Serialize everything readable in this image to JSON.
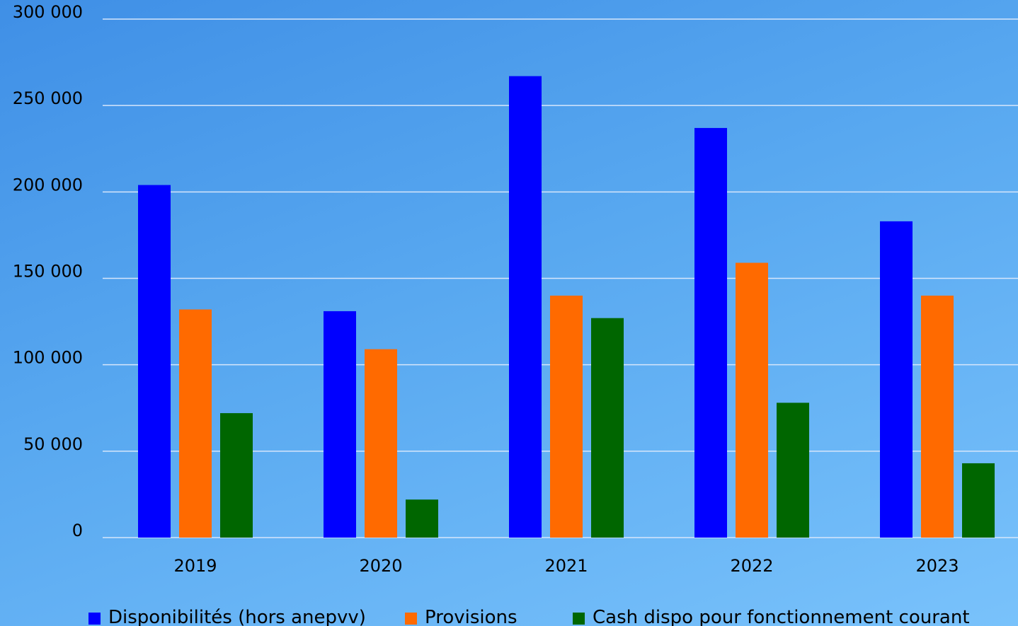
{
  "chart_data": {
    "type": "bar",
    "categories": [
      "2019",
      "2020",
      "2021",
      "2022",
      "2023"
    ],
    "series": [
      {
        "name": "Disponibilités (hors anepvv)",
        "color": "#0000ff",
        "values": [
          204000,
          131000,
          267000,
          237000,
          183000
        ]
      },
      {
        "name": "Provisions",
        "color": "#ff6a00",
        "values": [
          132000,
          109000,
          140000,
          159000,
          140000
        ]
      },
      {
        "name": "Cash dispo pour fonctionnement courant",
        "color": "#006600",
        "values": [
          72000,
          22000,
          127000,
          78000,
          43000
        ]
      }
    ],
    "yticks": [
      "0",
      "50 000",
      "100 000",
      "150 000",
      "200 000",
      "250 000",
      "300 000"
    ],
    "ylim": [
      0,
      300000
    ],
    "grid": true,
    "gridline_color": "#d6e6fb",
    "legend_position": "bottom"
  }
}
